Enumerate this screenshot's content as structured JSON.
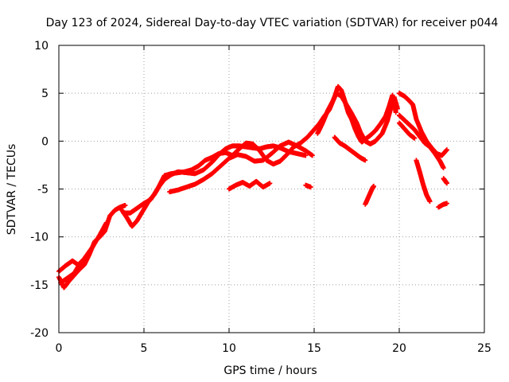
{
  "chart_data": {
    "type": "scatter",
    "title": "Day 123 of 2024, Sidereal Day-to-day VTEC variation (SDTVAR) for receiver p044",
    "xlabel": "GPS time / hours",
    "ylabel": "SDTVAR / TECUs",
    "xlim": [
      0,
      25
    ],
    "ylim": [
      -20,
      10
    ],
    "xticks": [
      0,
      5,
      10,
      15,
      20,
      25
    ],
    "yticks": [
      -20,
      -15,
      -10,
      -5,
      0,
      5,
      10
    ],
    "grid": true,
    "marker": "+",
    "series": [
      {
        "name": "SDTVAR",
        "color": "#ff0000",
        "tracks": [
          [
            [
              0.0,
              -14.2
            ],
            [
              0.3,
              -15.3
            ],
            [
              0.6,
              -14.6
            ],
            [
              0.9,
              -14.0
            ],
            [
              1.2,
              -13.4
            ],
            [
              1.5,
              -12.9
            ],
            [
              1.8,
              -11.8
            ],
            [
              2.1,
              -10.5
            ],
            [
              2.4,
              -10.0
            ],
            [
              2.7,
              -9.4
            ],
            [
              3.0,
              -7.8
            ],
            [
              3.3,
              -7.2
            ],
            [
              3.6,
              -6.9
            ],
            [
              3.9,
              -6.7
            ]
          ],
          [
            [
              0.0,
              -13.6
            ],
            [
              0.4,
              -13.0
            ],
            [
              0.8,
              -12.5
            ],
            [
              1.2,
              -13.0
            ],
            [
              1.6,
              -12.0
            ],
            [
              2.0,
              -11.0
            ],
            [
              2.4,
              -9.8
            ],
            [
              2.8,
              -8.5
            ]
          ],
          [
            [
              0.1,
              -14.8
            ],
            [
              0.5,
              -14.3
            ],
            [
              0.9,
              -13.8
            ],
            [
              1.3,
              -12.6
            ],
            [
              1.7,
              -12.1
            ]
          ],
          [
            [
              3.7,
              -7.2
            ],
            [
              4.0,
              -8.0
            ],
            [
              4.3,
              -8.9
            ],
            [
              4.6,
              -8.3
            ],
            [
              5.0,
              -7.1
            ],
            [
              5.3,
              -6.2
            ],
            [
              5.6,
              -5.6
            ],
            [
              5.9,
              -4.7
            ],
            [
              6.2,
              -4.0
            ],
            [
              6.6,
              -3.5
            ],
            [
              7.0,
              -3.2
            ],
            [
              7.5,
              -3.3
            ],
            [
              8.0,
              -3.4
            ],
            [
              8.5,
              -3.0
            ],
            [
              9.0,
              -2.2
            ],
            [
              9.4,
              -1.4
            ],
            [
              9.8,
              -0.8
            ],
            [
              10.2,
              -0.5
            ],
            [
              10.6,
              -0.5
            ],
            [
              11.0,
              -0.6
            ],
            [
              11.4,
              -0.7
            ],
            [
              11.8,
              -0.8
            ],
            [
              12.2,
              -0.6
            ],
            [
              12.6,
              -0.5
            ],
            [
              13.0,
              -0.7
            ],
            [
              13.5,
              -1.1
            ],
            [
              14.0,
              -1.3
            ],
            [
              14.5,
              -1.5
            ]
          ],
          [
            [
              3.8,
              -7.5
            ],
            [
              4.2,
              -7.5
            ],
            [
              4.6,
              -7.0
            ],
            [
              5.0,
              -6.5
            ],
            [
              5.4,
              -6.1
            ],
            [
              5.8,
              -5.0
            ],
            [
              6.2,
              -3.6
            ],
            [
              6.6,
              -3.4
            ],
            [
              7.0,
              -3.3
            ],
            [
              7.4,
              -3.2
            ],
            [
              7.8,
              -3.0
            ],
            [
              8.2,
              -2.6
            ],
            [
              8.6,
              -2.0
            ],
            [
              9.0,
              -1.7
            ],
            [
              9.4,
              -1.3
            ],
            [
              9.8,
              -1.2
            ],
            [
              10.2,
              -1.5
            ],
            [
              10.6,
              -0.8
            ],
            [
              11.0,
              -0.2
            ],
            [
              11.4,
              -0.3
            ],
            [
              11.8,
              -1.0
            ],
            [
              12.2,
              -2.0
            ],
            [
              12.6,
              -2.4
            ],
            [
              13.0,
              -2.1
            ],
            [
              13.4,
              -1.4
            ],
            [
              13.8,
              -0.6
            ],
            [
              14.2,
              -0.2
            ],
            [
              14.6,
              0.4
            ],
            [
              15.0,
              1.2
            ],
            [
              15.3,
              1.8
            ],
            [
              15.6,
              2.6
            ],
            [
              15.9,
              3.3
            ],
            [
              16.2,
              4.6
            ],
            [
              16.4,
              5.7
            ],
            [
              16.6,
              5.3
            ],
            [
              16.8,
              4.2
            ],
            [
              17.0,
              3.0
            ],
            [
              17.2,
              2.3
            ],
            [
              17.4,
              1.3
            ],
            [
              17.6,
              0.5
            ],
            [
              17.8,
              -0.1
            ],
            [
              18.0,
              0.2
            ],
            [
              18.3,
              0.6
            ],
            [
              18.6,
              1.1
            ],
            [
              18.9,
              1.8
            ],
            [
              19.2,
              2.6
            ],
            [
              19.4,
              3.6
            ],
            [
              19.6,
              4.8
            ],
            [
              19.8,
              3.0
            ]
          ],
          [
            [
              6.5,
              -5.3
            ],
            [
              7.0,
              -5.1
            ],
            [
              7.5,
              -4.8
            ],
            [
              8.0,
              -4.5
            ],
            [
              8.5,
              -4.0
            ],
            [
              9.0,
              -3.4
            ],
            [
              9.5,
              -2.6
            ],
            [
              10.0,
              -1.8
            ],
            [
              10.5,
              -1.4
            ],
            [
              11.0,
              -1.6
            ],
            [
              11.5,
              -2.1
            ],
            [
              12.0,
              -2.0
            ],
            [
              12.5,
              -1.3
            ],
            [
              13.0,
              -0.5
            ],
            [
              13.5,
              -0.1
            ],
            [
              14.0,
              -0.5
            ],
            [
              14.5,
              -1.0
            ],
            [
              14.9,
              -1.5
            ]
          ],
          [
            [
              10.0,
              -5.0
            ],
            [
              10.4,
              -4.6
            ],
            [
              10.8,
              -4.3
            ],
            [
              11.2,
              -4.7
            ],
            [
              11.6,
              -4.2
            ],
            [
              12.0,
              -4.8
            ],
            [
              12.4,
              -4.4
            ]
          ],
          [
            [
              14.5,
              -4.6
            ],
            [
              14.8,
              -4.8
            ]
          ],
          [
            [
              15.2,
              0.8
            ],
            [
              15.5,
              1.9
            ],
            [
              15.8,
              3.2
            ],
            [
              16.1,
              4.2
            ],
            [
              16.3,
              5.0
            ],
            [
              16.6,
              4.7
            ],
            [
              16.9,
              3.8
            ],
            [
              17.2,
              2.9
            ],
            [
              17.5,
              1.9
            ],
            [
              17.7,
              1.0
            ],
            [
              18.0,
              0.0
            ],
            [
              18.3,
              -0.3
            ],
            [
              18.6,
              0.0
            ],
            [
              19.0,
              0.8
            ],
            [
              19.3,
              2.1
            ],
            [
              19.5,
              3.4
            ],
            [
              19.7,
              4.6
            ],
            [
              19.9,
              3.4
            ]
          ],
          [
            [
              16.2,
              0.4
            ],
            [
              16.5,
              -0.2
            ],
            [
              16.8,
              -0.5
            ],
            [
              17.1,
              -0.9
            ],
            [
              17.4,
              -1.3
            ],
            [
              17.7,
              -1.7
            ],
            [
              18.0,
              -2.0
            ]
          ],
          [
            [
              18.0,
              -6.6
            ],
            [
              18.2,
              -5.8
            ],
            [
              18.4,
              -5.0
            ],
            [
              18.5,
              -4.7
            ]
          ],
          [
            [
              20.0,
              5.0
            ],
            [
              20.3,
              4.7
            ],
            [
              20.6,
              4.2
            ],
            [
              20.8,
              3.8
            ],
            [
              21.0,
              2.3
            ],
            [
              21.3,
              1.0
            ],
            [
              21.6,
              0.0
            ],
            [
              21.9,
              -0.7
            ],
            [
              22.2,
              -1.3
            ],
            [
              22.5,
              -1.5
            ],
            [
              22.8,
              -0.9
            ]
          ],
          [
            [
              20.0,
              2.7
            ],
            [
              20.3,
              2.2
            ],
            [
              20.6,
              1.7
            ],
            [
              20.9,
              1.2
            ],
            [
              21.2,
              0.5
            ],
            [
              21.5,
              -0.2
            ],
            [
              21.8,
              -0.6
            ],
            [
              22.1,
              -1.3
            ],
            [
              22.4,
              -2.1
            ],
            [
              22.6,
              -2.8
            ]
          ],
          [
            [
              20.0,
              1.9
            ],
            [
              20.3,
              1.3
            ],
            [
              20.6,
              0.7
            ],
            [
              20.9,
              0.3
            ]
          ],
          [
            [
              21.0,
              -2.0
            ],
            [
              21.2,
              -3.2
            ],
            [
              21.4,
              -4.5
            ],
            [
              21.6,
              -5.6
            ],
            [
              21.8,
              -6.3
            ]
          ],
          [
            [
              22.3,
              -6.9
            ],
            [
              22.6,
              -6.6
            ],
            [
              22.8,
              -6.5
            ]
          ],
          [
            [
              22.6,
              -3.9
            ],
            [
              22.8,
              -4.4
            ]
          ]
        ]
      }
    ]
  }
}
